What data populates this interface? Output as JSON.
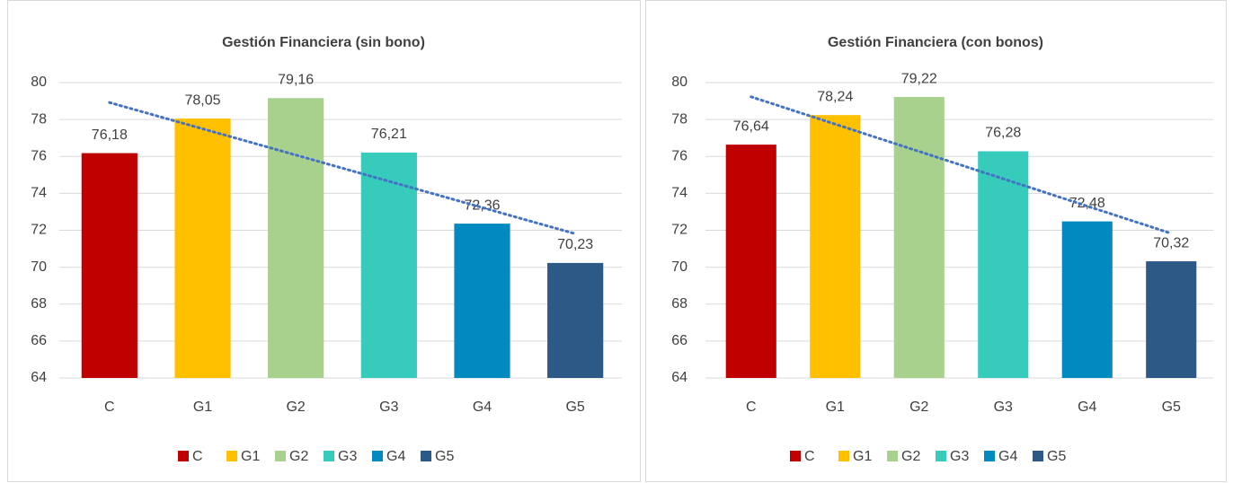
{
  "chart_data": [
    {
      "type": "bar",
      "title": "Gestión Financiera (sin bono)",
      "categories": [
        "C",
        "G1",
        "G2",
        "G3",
        "G4",
        "G5"
      ],
      "values": [
        76.18,
        78.05,
        79.16,
        76.21,
        72.36,
        70.23
      ],
      "value_labels": [
        "76,18",
        "78,05",
        "79,16",
        "76,21",
        "72,36",
        "70,23"
      ],
      "colors": [
        "#c00000",
        "#ffc000",
        "#a9d18e",
        "#36cbbb",
        "#008abf",
        "#2c5985"
      ],
      "ylim": [
        64,
        80
      ],
      "yticks": [
        64,
        66,
        68,
        70,
        72,
        74,
        76,
        78,
        80
      ],
      "grid": true,
      "trendline": "linear",
      "trendline_color": "#4472c4",
      "legend": "bottom"
    },
    {
      "type": "bar",
      "title": "Gestión Financiera (con bonos)",
      "categories": [
        "C",
        "G1",
        "G2",
        "G3",
        "G4",
        "G5"
      ],
      "values": [
        76.64,
        78.24,
        79.22,
        76.28,
        72.48,
        70.32
      ],
      "value_labels": [
        "76,64",
        "78,24",
        "79,22",
        "76,28",
        "72,48",
        "70,32"
      ],
      "colors": [
        "#c00000",
        "#ffc000",
        "#a9d18e",
        "#36cbbb",
        "#008abf",
        "#2c5985"
      ],
      "ylim": [
        64,
        80
      ],
      "yticks": [
        64,
        66,
        68,
        70,
        72,
        74,
        76,
        78,
        80
      ],
      "grid": true,
      "trendline": "linear",
      "trendline_color": "#4472c4",
      "legend": "bottom"
    }
  ]
}
